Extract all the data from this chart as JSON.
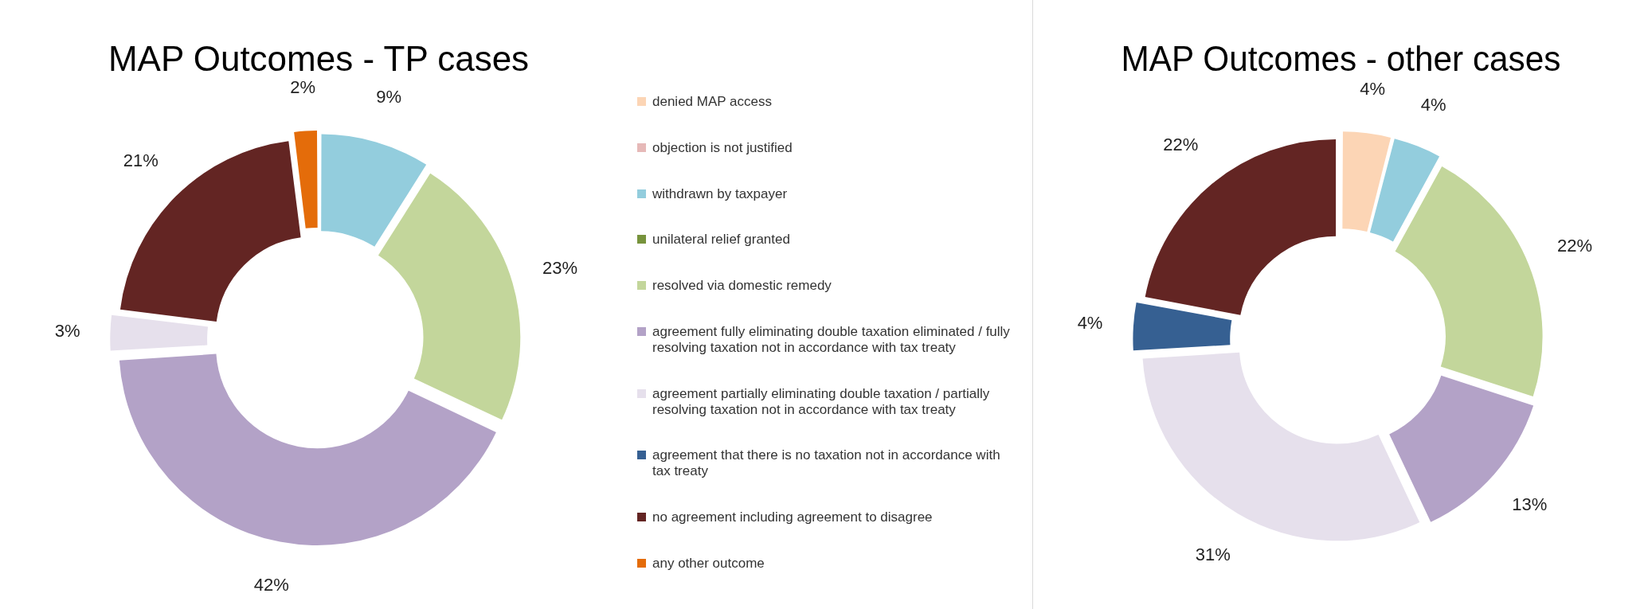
{
  "chart_data": [
    {
      "type": "donut",
      "title": "MAP Outcomes - TP cases",
      "legend": "right",
      "categories": [
        "denied MAP access",
        "objection is not justified",
        "withdrawn by taxpayer",
        "unilateral relief granted",
        "resolved via domestic remedy",
        "agreement fully eliminating double taxation eliminated / fully resolving taxation not in accordance with tax treaty",
        "agreement partially eliminating double taxation / partially resolving taxation not in accordance with tax treaty",
        "agreement that there is no taxation not in accordance with tax treaty",
        "no agreement including agreement to disagree",
        "any other outcome"
      ],
      "values": [
        0,
        0,
        9,
        0,
        23,
        42,
        3,
        0,
        21,
        2
      ],
      "value_labels": [
        null,
        null,
        "9%",
        null,
        "23%",
        "42%",
        "3%",
        null,
        "21%",
        "2%"
      ],
      "colors": [
        "#fcd5b5",
        "#e6b9b8",
        "#93cddd",
        "#77933c",
        "#c3d69b",
        "#b3a2c7",
        "#e6e0ec",
        "#366092",
        "#632523",
        "#e46c0a"
      ]
    },
    {
      "type": "donut",
      "title": "MAP Outcomes - other cases",
      "categories": [
        null,
        null,
        null,
        null,
        null,
        null,
        null,
        null,
        null,
        null
      ],
      "values": [
        4,
        0,
        4,
        0,
        22,
        13,
        31,
        4,
        22,
        0
      ],
      "value_labels": [
        "4%",
        null,
        "4%",
        null,
        "22%",
        "13%",
        "31%",
        "4%",
        "22%",
        null
      ],
      "colors": [
        "#fcd5b5",
        "#e6b9b8",
        "#93cddd",
        "#77933c",
        "#c3d69b",
        "#b3a2c7",
        "#e6e0ec",
        "#366092",
        "#632523",
        "#e46c0a"
      ]
    }
  ]
}
